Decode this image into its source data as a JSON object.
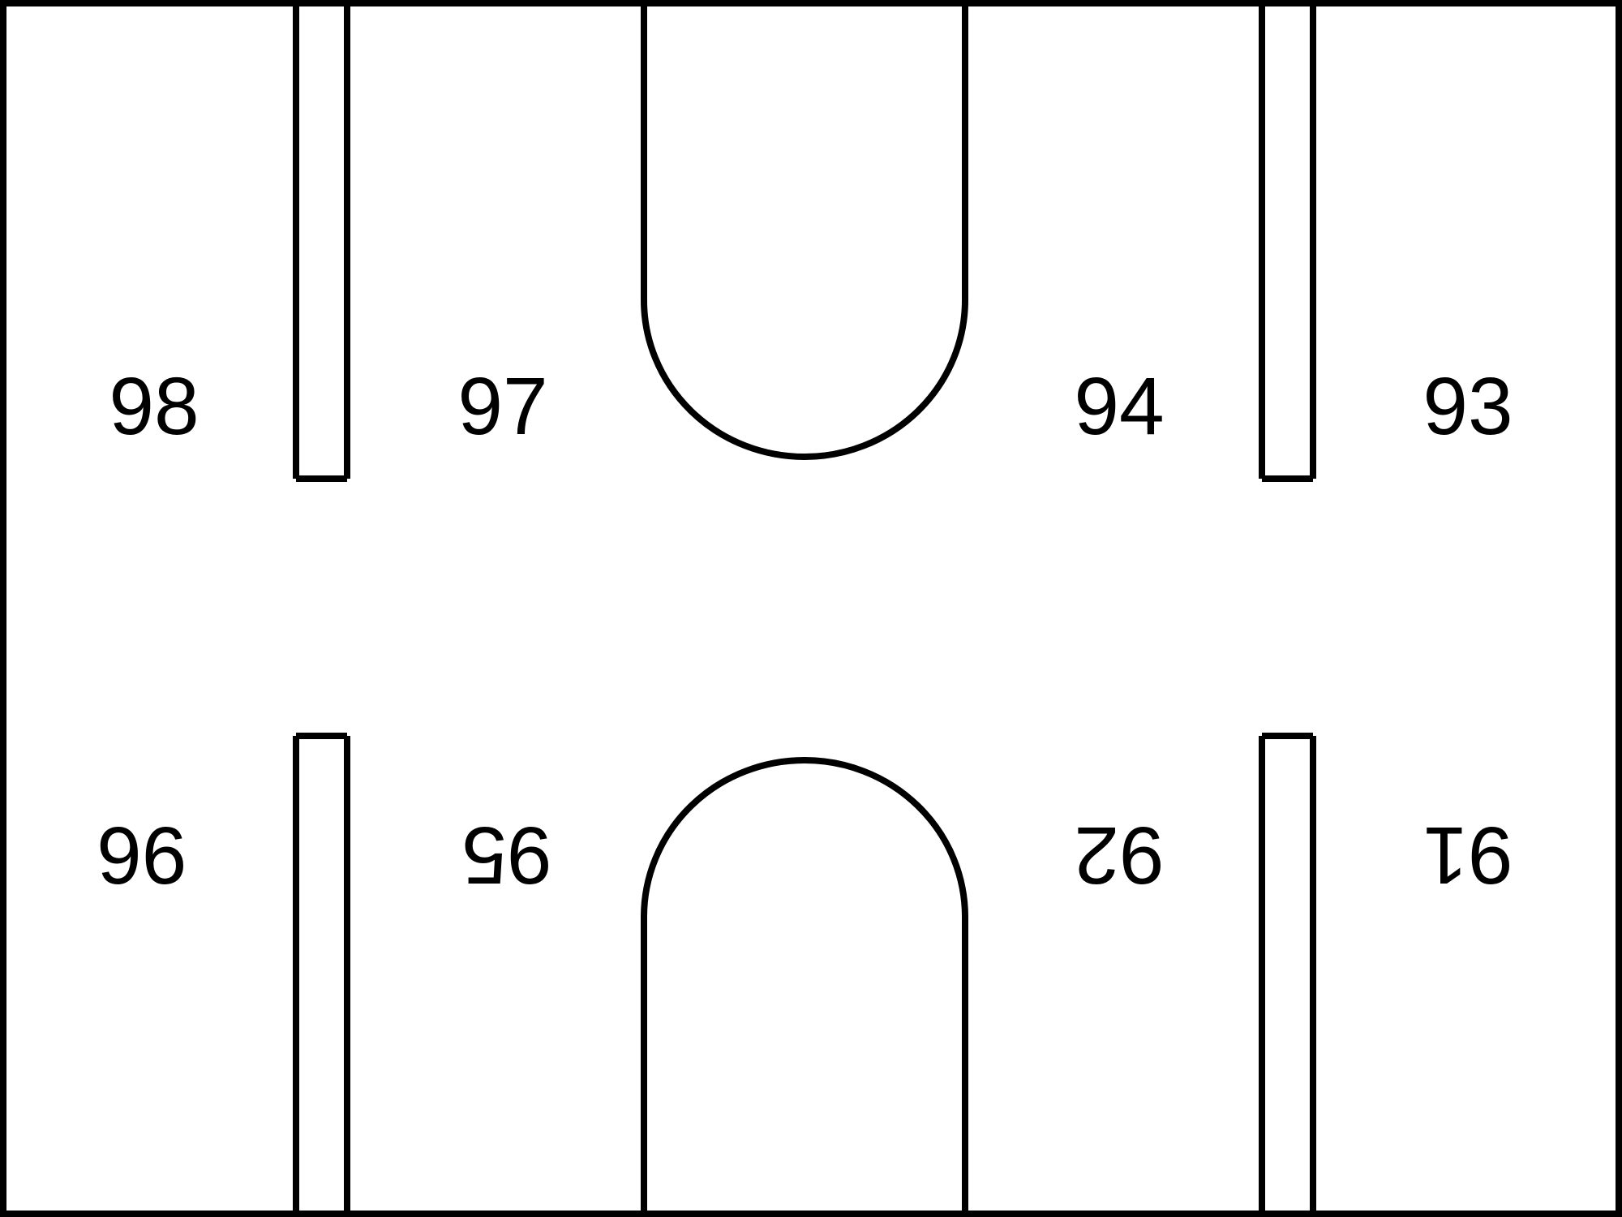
{
  "rooms": {
    "top": [
      "98",
      "97",
      "94",
      "93"
    ],
    "bottom": [
      "96",
      "95",
      "92",
      "91"
    ]
  },
  "colors": {
    "stroke": "#000000",
    "background": "#ffffff"
  }
}
